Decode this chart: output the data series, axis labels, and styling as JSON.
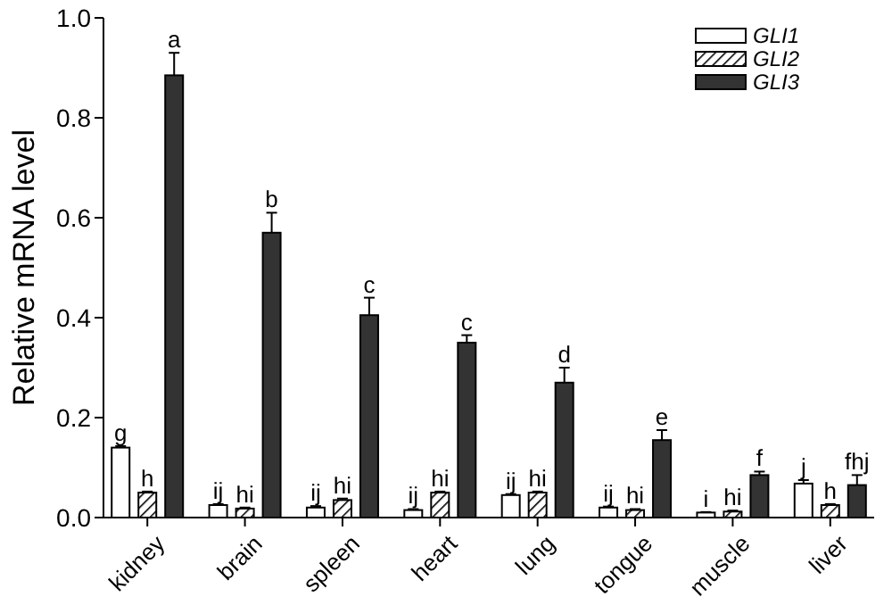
{
  "chart_data": {
    "type": "bar",
    "ylabel": "Relative mRNA level",
    "categories": [
      "kidney",
      "brain",
      "spleen",
      "heart",
      "lung",
      "tongue",
      "muscle",
      "liver"
    ],
    "series": [
      {
        "name": "GLI1",
        "color": "#ffffff",
        "values": [
          0.14,
          0.025,
          0.02,
          0.015,
          0.045,
          0.02,
          0.01,
          0.068
        ],
        "errors": [
          0.003,
          0.002,
          0.003,
          0.002,
          0.002,
          0.002,
          0.001,
          0.007
        ],
        "value_labels": [
          "g",
          "ij",
          "ij",
          "ij",
          "ij",
          "ij",
          "i",
          "j"
        ]
      },
      {
        "name": "GLI2",
        "color": "#000000",
        "values": [
          0.05,
          0.018,
          0.035,
          0.05,
          0.05,
          0.015,
          0.012,
          0.025
        ],
        "errors": [
          0.002,
          0.002,
          0.003,
          0.002,
          0.002,
          0.002,
          0.002,
          0.002
        ],
        "value_labels": [
          "h",
          "hi",
          "hi",
          "hi",
          "hi",
          "hi",
          "hi",
          "h"
        ]
      },
      {
        "name": "GLI3",
        "color": "#333333",
        "values": [
          0.885,
          0.57,
          0.405,
          0.35,
          0.27,
          0.155,
          0.085,
          0.065
        ],
        "errors": [
          0.045,
          0.04,
          0.035,
          0.015,
          0.03,
          0.02,
          0.007,
          0.02
        ],
        "value_labels": [
          "a",
          "b",
          "c",
          "c",
          "d",
          "e",
          "f",
          "fhj"
        ]
      }
    ],
    "ylim": [
      0,
      1
    ],
    "yticks": [
      {
        "value": 0,
        "label": "0.0"
      },
      {
        "value": 0.2,
        "label": "0.2"
      },
      {
        "value": 0.4,
        "label": "0.4"
      },
      {
        "value": 0.6,
        "label": "0.6"
      },
      {
        "value": 0.8,
        "label": "0.8"
      },
      {
        "value": 1,
        "label": "1.0"
      }
    ],
    "legend": "top right"
  }
}
